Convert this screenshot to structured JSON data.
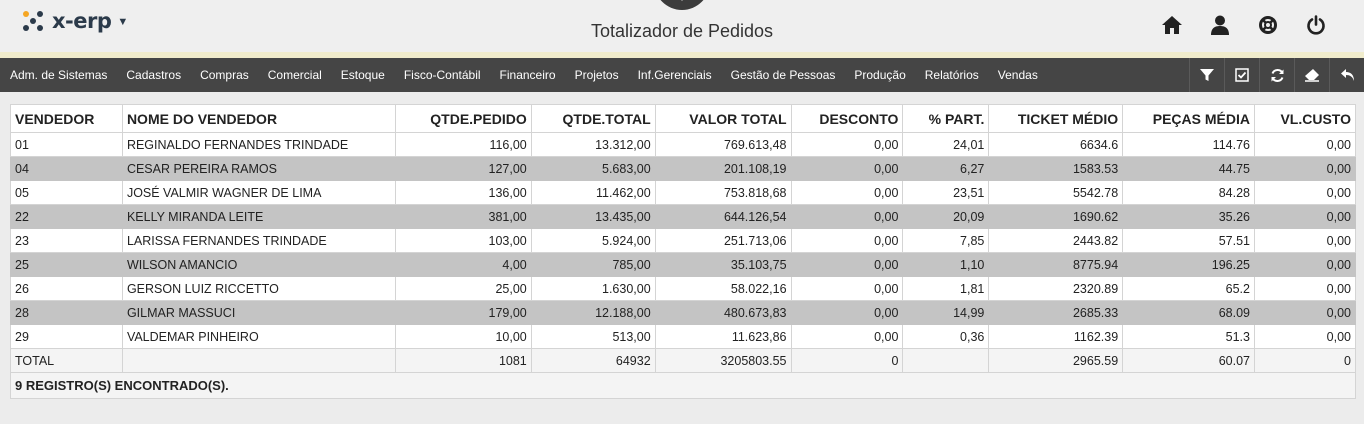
{
  "app": {
    "name": "x-erp"
  },
  "header": {
    "title": "Totalizador de Pedidos"
  },
  "top_icons": [
    "home-icon",
    "user-icon",
    "lifebuoy-icon",
    "power-icon"
  ],
  "menu": [
    "Adm. de Sistemas",
    "Cadastros",
    "Compras",
    "Comercial",
    "Estoque",
    "Fisco-Contábil",
    "Financeiro",
    "Projetos",
    "Inf.Gerenciais",
    "Gestão de Pessoas",
    "Produção",
    "Relatórios",
    "Vendas"
  ],
  "tools": [
    "filter-icon",
    "checkbox-icon",
    "refresh-icon",
    "eraser-icon",
    "back-arrow-icon"
  ],
  "table": {
    "headers": [
      "VENDEDOR",
      "NOME DO VENDEDOR",
      "QTDE.PEDIDO",
      "QTDE.TOTAL",
      "VALOR TOTAL",
      "DESCONTO",
      "% PART.",
      "TICKET MÉDIO",
      "PEÇAS MÉDIA",
      "VL.CUSTO"
    ],
    "rows": [
      [
        "01",
        "REGINALDO FERNANDES TRINDADE",
        "116,00",
        "13.312,00",
        "769.613,48",
        "0,00",
        "24,01",
        "6634.6",
        "114.76",
        "0,00"
      ],
      [
        "04",
        "CESAR PEREIRA RAMOS",
        "127,00",
        "5.683,00",
        "201.108,19",
        "0,00",
        "6,27",
        "1583.53",
        "44.75",
        "0,00"
      ],
      [
        "05",
        "JOSÉ VALMIR WAGNER DE LIMA",
        "136,00",
        "11.462,00",
        "753.818,68",
        "0,00",
        "23,51",
        "5542.78",
        "84.28",
        "0,00"
      ],
      [
        "22",
        "KELLY MIRANDA LEITE",
        "381,00",
        "13.435,00",
        "644.126,54",
        "0,00",
        "20,09",
        "1690.62",
        "35.26",
        "0,00"
      ],
      [
        "23",
        "LARISSA FERNANDES TRINDADE",
        "103,00",
        "5.924,00",
        "251.713,06",
        "0,00",
        "7,85",
        "2443.82",
        "57.51",
        "0,00"
      ],
      [
        "25",
        "WILSON AMANCIO",
        "4,00",
        "785,00",
        "35.103,75",
        "0,00",
        "1,10",
        "8775.94",
        "196.25",
        "0,00"
      ],
      [
        "26",
        "GERSON LUIZ RICCETTO",
        "25,00",
        "1.630,00",
        "58.022,16",
        "0,00",
        "1,81",
        "2320.89",
        "65.2",
        "0,00"
      ],
      [
        "28",
        "GILMAR MASSUCI",
        "179,00",
        "12.188,00",
        "480.673,83",
        "0,00",
        "14,99",
        "2685.33",
        "68.09",
        "0,00"
      ],
      [
        "29",
        "VALDEMAR PINHEIRO",
        "10,00",
        "513,00",
        "11.623,86",
        "0,00",
        "0,36",
        "1162.39",
        "51.3",
        "0,00"
      ]
    ],
    "total": [
      "TOTAL",
      "",
      "1081",
      "64932",
      "3205803.55",
      "0",
      "",
      "2965.59",
      "60.07",
      "0"
    ],
    "footer": "9 REGISTRO(S) ENCONTRADO(S)."
  }
}
